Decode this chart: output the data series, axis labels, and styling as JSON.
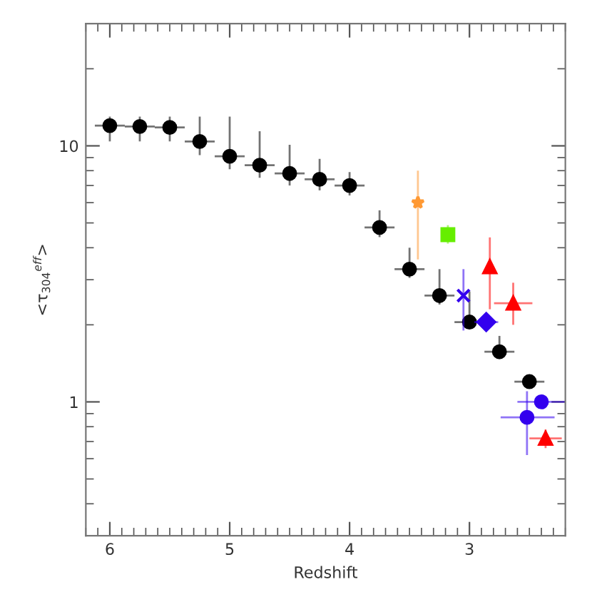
{
  "chart_data": {
    "type": "scatter",
    "xlabel": "Redshift",
    "ylabel": "<τ$_{304}$$^{eff}$>",
    "log": "y",
    "xlim": [
      6.2,
      2.2
    ],
    "ylim": [
      0.3,
      30
    ],
    "xticks": [
      6,
      5,
      4,
      3
    ],
    "yticks": [
      1,
      10
    ],
    "grid": false,
    "legend": false,
    "series": [
      {
        "color": "#000000",
        "marker": "circle",
        "x": [
          6.0,
          5.75,
          5.5,
          5.25,
          5.0,
          4.75,
          4.5,
          4.25,
          4.0,
          3.75,
          3.5,
          3.25,
          3.0,
          2.75,
          2.5
        ],
        "values": [
          12.0,
          11.9,
          11.8,
          10.4,
          9.1,
          8.4,
          7.8,
          7.4,
          7.0,
          4.8,
          3.3,
          2.6,
          2.05,
          1.57,
          1.2
        ],
        "errors": [
          [
            10.4,
            13.0
          ],
          [
            10.4,
            13.0
          ],
          [
            10.4,
            13.0
          ],
          [
            9.2,
            13.0
          ],
          [
            8.1,
            13.0
          ],
          [
            7.5,
            11.4
          ],
          [
            7.0,
            10.1
          ],
          [
            6.7,
            8.9
          ],
          [
            6.4,
            7.9
          ],
          [
            4.4,
            5.6
          ],
          [
            3.05,
            4.0
          ],
          [
            2.4,
            3.3
          ],
          [
            1.93,
            2.7
          ],
          [
            1.47,
            1.81
          ],
          null
        ],
        "xerrors": [
          0.125,
          0.125,
          0.125,
          0.125,
          0.125,
          0.125,
          0.125,
          0.125,
          0.125,
          0.125,
          0.125,
          0.125,
          0.125,
          0.125,
          0.125
        ]
      },
      {
        "color": "#ff9933",
        "marker": "star",
        "x": [
          3.43
        ],
        "values": [
          6.0
        ],
        "errors": [
          [
            3.6,
            8.0
          ]
        ],
        "xerrors": [
          null
        ]
      },
      {
        "color": "#66ee00",
        "marker": "square",
        "x": [
          3.18
        ],
        "values": [
          4.5
        ],
        "errors": [
          [
            4.15,
            4.9
          ]
        ],
        "xerrors": [
          null
        ]
      },
      {
        "color": "#3300ee",
        "marker": "cross",
        "x": [
          3.05
        ],
        "values": [
          2.6
        ],
        "errors": [
          [
            1.9,
            3.3
          ]
        ],
        "xerrors": [
          null
        ]
      },
      {
        "color": "#3300ee",
        "marker": "diamond",
        "x": [
          2.86
        ],
        "values": [
          2.05
        ],
        "errors": [
          null
        ],
        "xerrors": [
          0.1
        ]
      },
      {
        "color": "#ff0000",
        "marker": "triangle",
        "x": [
          2.83,
          2.635,
          2.365
        ],
        "values": [
          3.37,
          2.43,
          0.72
        ],
        "errors": [
          [
            2.3,
            4.39
          ],
          [
            2.0,
            2.92
          ],
          [
            0.66,
            0.78
          ]
        ],
        "xerrors": [
          null,
          0.16,
          [
            2.23,
            2.5
          ]
        ]
      },
      {
        "color": "#3300ee",
        "marker": "circle",
        "x": [
          2.4,
          2.52
        ],
        "values": [
          1.0,
          0.87
        ],
        "errors": [
          null,
          [
            0.62,
            1.1
          ]
        ],
        "xerrors": [
          [
            2.2,
            2.6
          ],
          [
            2.3,
            2.75
          ]
        ]
      }
    ]
  }
}
